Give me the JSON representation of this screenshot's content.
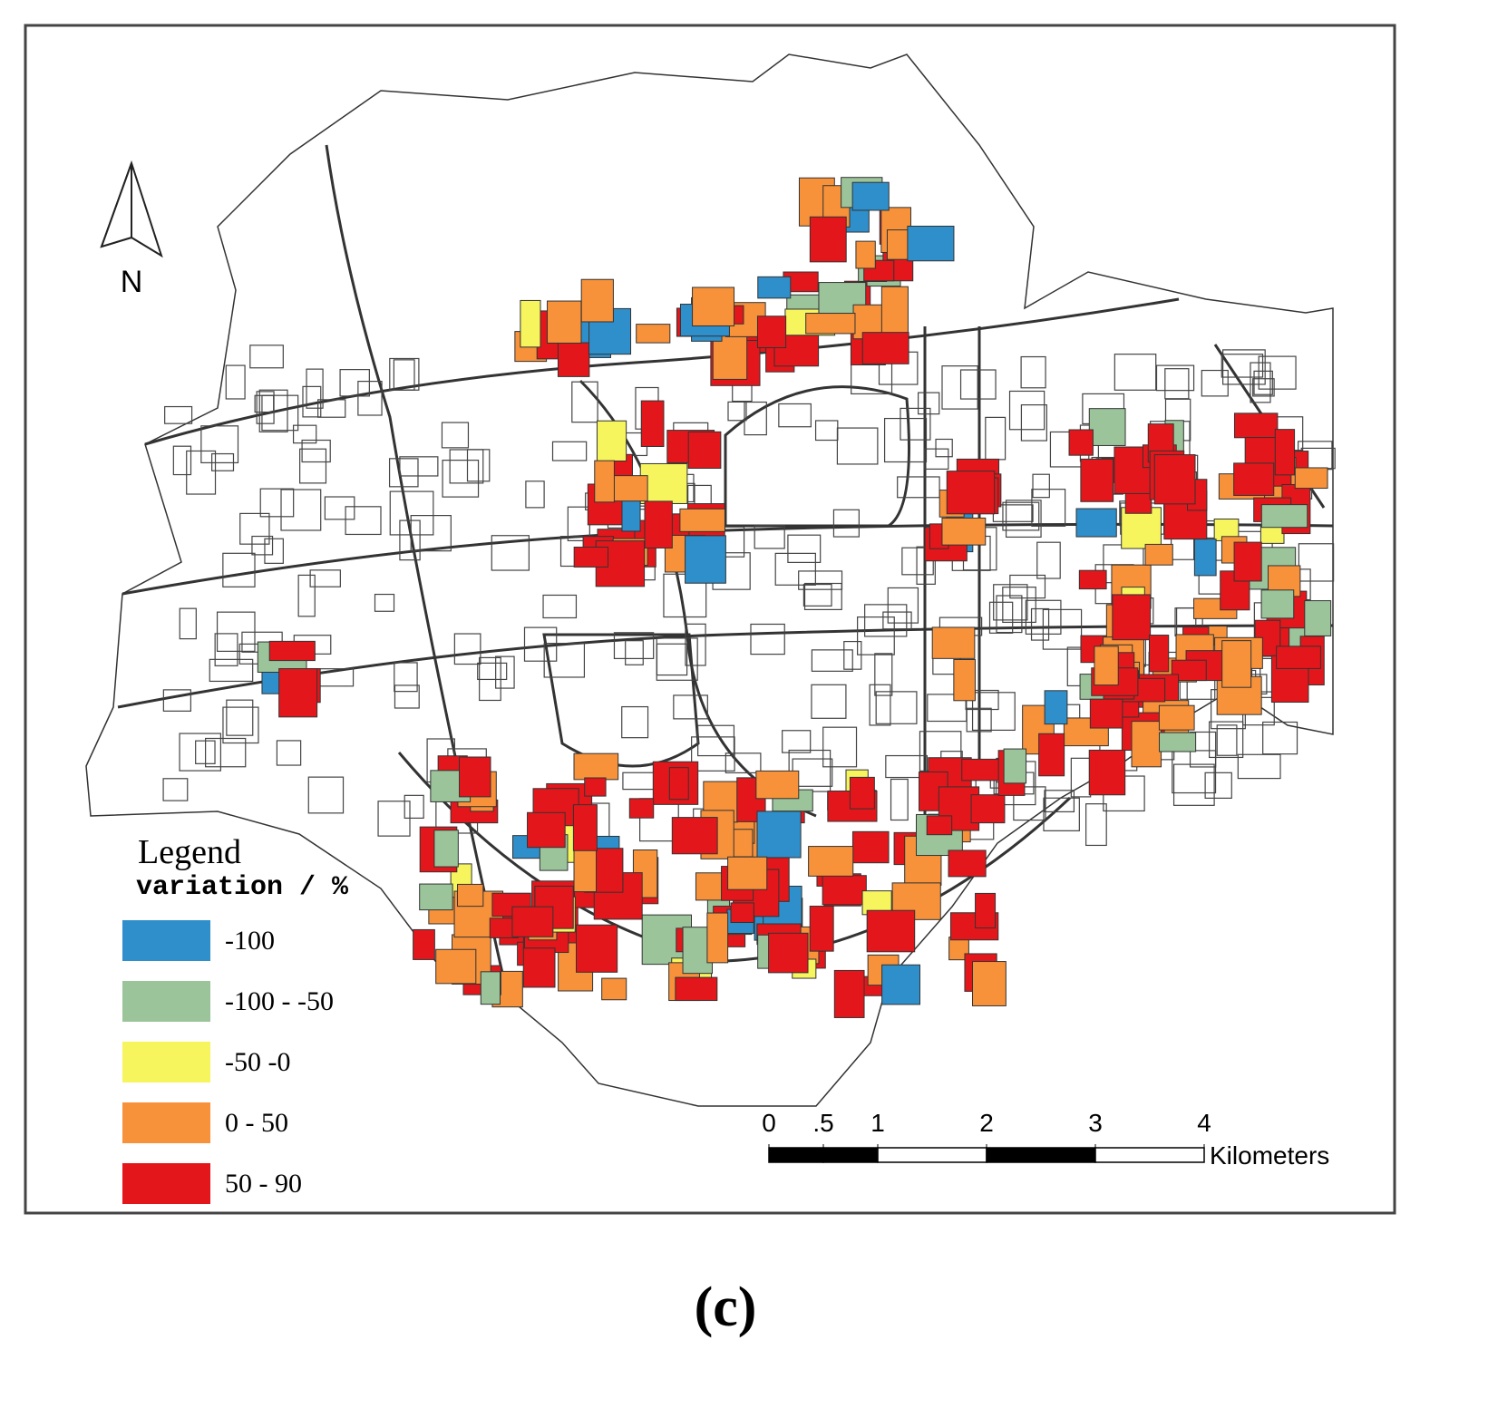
{
  "north": "N",
  "legend": {
    "title": "Legend",
    "subtitle": "variation / %",
    "items": [
      {
        "label": "-100",
        "color": "#2e8fcb"
      },
      {
        "label": "-100 - -50",
        "color": "#9bc49a"
      },
      {
        "label": "-50 -0",
        "color": "#f7f55e"
      },
      {
        "label": "0 - 50",
        "color": "#f7923a"
      },
      {
        "label": "50 - 90",
        "color": "#e3171b"
      }
    ]
  },
  "scale_bar": {
    "unit": "Kilometers",
    "ticks": [
      0,
      {
        "value": 0.5,
        "label": ".5"
      },
      1,
      2,
      3,
      4
    ]
  },
  "caption": "(c)"
}
